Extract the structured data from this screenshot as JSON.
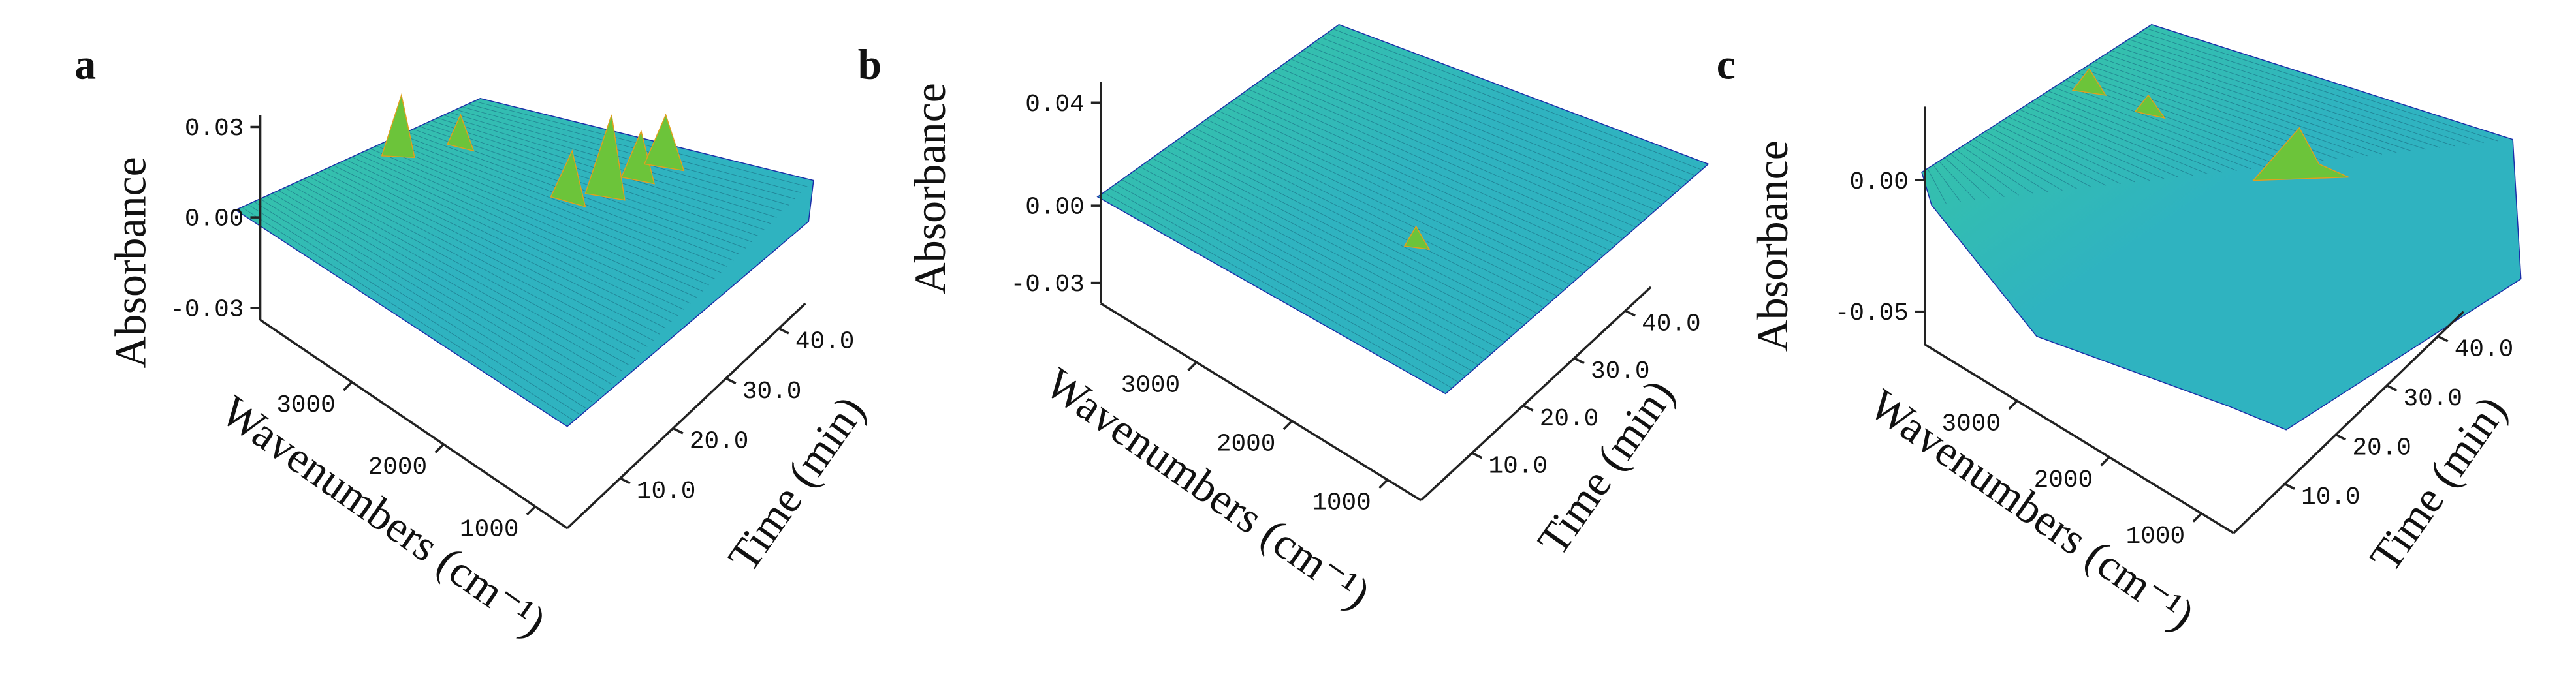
{
  "chart_data": [
    {
      "type": "surface3d",
      "panel_label": "a",
      "zlabel": "Absorbance",
      "xlabel": "Wavenumbers (cm⁻¹)",
      "tlabel": "Time (min)",
      "zlim": [
        -0.034,
        0.034
      ],
      "zticks": [
        0.03,
        {
          "value": 0,
          "label": "0.00"
        },
        -0.03
      ],
      "xlim": [
        4000,
        650
      ],
      "xticks": [
        3000,
        2000,
        1000
      ],
      "tlim": [
        0,
        45
      ],
      "tticks": [
        {
          "value": 10,
          "label": "10.0"
        },
        {
          "value": 20,
          "label": "20.0"
        },
        {
          "value": 30,
          "label": "30.0"
        },
        {
          "value": 40,
          "label": "40.0"
        }
      ],
      "colormap": [
        "#1a2fa8",
        "#2fb3c0",
        "#38c9a0",
        "#6cc43a",
        "#e0a020",
        "#d83a1c"
      ]
    },
    {
      "type": "surface3d",
      "panel_label": "b",
      "zlabel": "Absorbance",
      "xlabel": "Wavenumbers (cm⁻¹)",
      "tlabel": "Time (min)",
      "zlim": [
        -0.038,
        0.048
      ],
      "zticks": [
        0.04,
        {
          "value": 0,
          "label": "0.00"
        },
        -0.03
      ],
      "xlim": [
        4000,
        650
      ],
      "xticks": [
        3000,
        2000,
        1000
      ],
      "tlim": [
        0,
        45
      ],
      "tticks": [
        {
          "value": 10,
          "label": "10.0"
        },
        {
          "value": 20,
          "label": "20.0"
        },
        {
          "value": 30,
          "label": "30.0"
        },
        {
          "value": 40,
          "label": "40.0"
        }
      ],
      "colormap": [
        "#1a2fa8",
        "#2fb3c0",
        "#38c9a0",
        "#6cc43a",
        "#e0a020",
        "#d83a1c"
      ]
    },
    {
      "type": "surface3d",
      "panel_label": "c",
      "zlabel": "Absorbance",
      "xlabel": "Wavenumbers (cm⁻¹)",
      "tlabel": "Time (min)",
      "zlim": [
        -0.0625,
        0.028
      ],
      "zticks": [
        {
          "value": 0,
          "label": "0.00"
        },
        -0.05
      ],
      "xlim": [
        4000,
        650
      ],
      "xticks": [
        3000,
        2000,
        1000
      ],
      "tlim": [
        0,
        45
      ],
      "tticks": [
        {
          "value": 10,
          "label": "10.0"
        },
        {
          "value": 20,
          "label": "20.0"
        },
        {
          "value": 30,
          "label": "30.0"
        },
        {
          "value": 40,
          "label": "40.0"
        }
      ],
      "colormap": [
        "#1a2fa8",
        "#2fb3c0",
        "#38c9a0",
        "#6cc43a",
        "#e0a020",
        "#d83a1c"
      ]
    }
  ]
}
